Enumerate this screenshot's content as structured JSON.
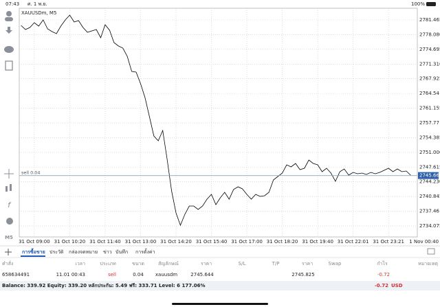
{
  "status_bar": {
    "time": "07:43",
    "date": "ศ. 1 พ.ย.",
    "battery": "100%"
  },
  "toolbar": {
    "timeframe": "M5"
  },
  "chart_data": {
    "type": "line",
    "title": "XAUUSDm, M5",
    "color": "#000000",
    "grid": true,
    "values": [
      2780.2,
      2779.25,
      2779.73,
      2780.83,
      2780.04,
      2781.47,
      2779.41,
      2778.78,
      2778.3,
      2780.04,
      2781.47,
      2782.57,
      2780.99,
      2781.31,
      2779.73,
      2778.62,
      2778.94,
      2779.25,
      2777.36,
      2780.36,
      2779.1,
      2776.25,
      2775.46,
      2774.99,
      2773.09,
      2769.62,
      2769.46,
      2766.77,
      2763.61,
      2759.19,
      2754.77,
      2753.66,
      2756.03,
      2749.39,
      2742.13,
      2737.07,
      2734.22,
      2736.76,
      2738.65,
      2738.65,
      2737.86,
      2738.65,
      2740.23,
      2741.34,
      2738.97,
      2740.55,
      2741.81,
      2740.23,
      2742.45,
      2743.08,
      2742.6,
      2741.34,
      2740.23,
      2741.34,
      2740.86,
      2741.02,
      2741.81,
      2744.66,
      2745.45,
      2746.24,
      2748.13,
      2747.66,
      2748.45,
      2747.03,
      2747.34,
      2749.24,
      2748.45,
      2748.13,
      2746.55,
      2747.34,
      2746.24,
      2744.34,
      2746.55,
      2747.18,
      2745.76,
      2746.39,
      2746.08,
      2746.24,
      2745.92,
      2746.39,
      2746.08,
      2746.39,
      2746.87,
      2747.34,
      2746.55,
      2747.18,
      2746.55,
      2746.71,
      2745.76
    ],
    "xlim": [
      -0.4,
      89.5
    ],
    "xticks": [
      {
        "value": 3,
        "label": "31 Oct 09:00"
      },
      {
        "value": 11,
        "label": "31 Oct 10:20"
      },
      {
        "value": 19,
        "label": "31 Oct 11:40"
      },
      {
        "value": 27,
        "label": "31 Oct 13:00"
      },
      {
        "value": 35,
        "label": "31 Oct 14:20"
      },
      {
        "value": 43,
        "label": "31 Oct 15:40"
      },
      {
        "value": 51,
        "label": "31 Oct 17:00"
      },
      {
        "value": 59,
        "label": "31 Oct 18:20"
      },
      {
        "value": 67,
        "label": "31 Oct 19:40"
      },
      {
        "value": 75,
        "label": "31 Oct 22:01"
      },
      {
        "value": 83,
        "label": "31 Oct 23:21"
      },
      {
        "value": 91,
        "label": "1 Nov 00:40"
      }
    ],
    "ylim": [
      2731.54,
      2784.15
    ],
    "yticks": [
      2781.465,
      {
        "value": 2778.08,
        "label": "2778.080"
      },
      2774.695,
      {
        "value": 2771.31,
        "label": "2771.310"
      },
      2767.925,
      2764.54,
      2761.155,
      2757.77,
      2754.385,
      {
        "value": 2751,
        "label": "2751.000"
      },
      2747.615,
      {
        "value": 2744.23,
        "label": "2744.230"
      },
      2740.845,
      2737.46,
      2734.075
    ],
    "bid": 2745.665,
    "position_label": "sell 0.04"
  },
  "tabs": [
    "การซื้อขาย",
    "ประวัติ",
    "กล่องจดหมาย",
    "ข่าว",
    "บันทึก",
    "การตั้งค่า"
  ],
  "table": {
    "headers": [
      "คำสั่ง",
      "เวลา",
      "ประเภท",
      "ขนาด",
      "สัญลักษณ์",
      "ราคา",
      "S/L",
      "T/P",
      "ราคา",
      "Swap",
      "กำไร",
      "หมายเหตุ"
    ],
    "position": {
      "ticket": "658634491",
      "time": "11.01 00:43",
      "type": "sell",
      "volume": "0.04",
      "symbol": "xauusdm",
      "open_price": 2745.644,
      "current_price": 2745.825,
      "profit": -0.72
    },
    "summary": "Balance: 339.92 Equity: 339.20 หลักประกัน: 5.49 ฟรี: 333.71 Level: 6 177.06%",
    "total_profit": -0.72,
    "currency": "USD"
  }
}
